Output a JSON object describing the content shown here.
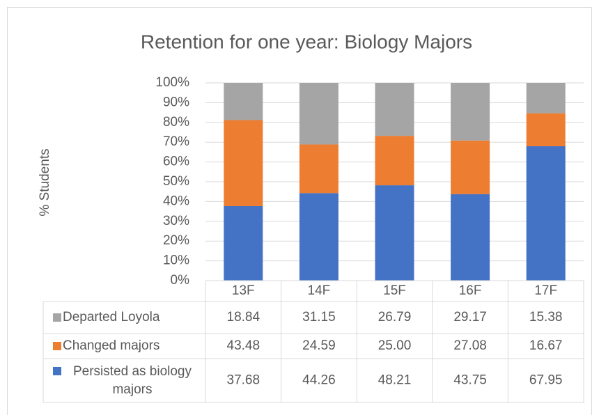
{
  "chart_data": {
    "type": "stacked_bar",
    "title": "Retention for one year:  Biology Majors",
    "y_label": "% Students",
    "categories": [
      "13F",
      "14F",
      "15F",
      "16F",
      "17F"
    ],
    "series": [
      {
        "name": "Departed Loyola",
        "color": "#a5a5a5",
        "values": [
          18.84,
          31.15,
          26.79,
          29.17,
          15.38
        ],
        "value_labels": [
          "18.84",
          "31.15",
          "26.79",
          "29.17",
          "15.38"
        ]
      },
      {
        "name": "Changed majors",
        "color": "#ed7d31",
        "values": [
          43.48,
          24.59,
          25,
          27.08,
          16.67
        ],
        "value_labels": [
          "43.48",
          "24.59",
          "25.00",
          "27.08",
          "16.67"
        ]
      },
      {
        "name": "Persisted as biology majors",
        "color": "#4472c4",
        "values": [
          37.68,
          44.26,
          48.21,
          43.75,
          67.95
        ],
        "value_labels": [
          "37.68",
          "44.26",
          "48.21",
          "43.75",
          "67.95"
        ]
      }
    ],
    "ylim": [
      0,
      100
    ],
    "yticks": [
      {
        "value": 0,
        "label": "0%"
      },
      {
        "value": 10,
        "label": "10%"
      },
      {
        "value": 20,
        "label": "20%"
      },
      {
        "value": 30,
        "label": "30%"
      },
      {
        "value": 40,
        "label": "40%"
      },
      {
        "value": 50,
        "label": "50%"
      },
      {
        "value": 60,
        "label": "60%"
      },
      {
        "value": 70,
        "label": "70%"
      },
      {
        "value": 80,
        "label": "80%"
      },
      {
        "value": 90,
        "label": "90%"
      },
      {
        "value": 100,
        "label": "100%"
      }
    ],
    "grid": true
  }
}
